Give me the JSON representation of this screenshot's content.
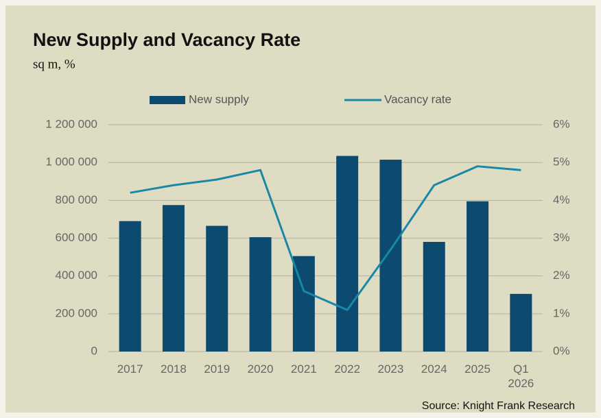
{
  "chart_data": {
    "type": "bar_line",
    "title": "New Supply and Vacancy Rate",
    "subtitle": "sq m, %",
    "source": "Source: Knight Frank Research",
    "categories": [
      "2017",
      "2018",
      "2019",
      "2020",
      "2021",
      "2022",
      "2023",
      "2024",
      "2025",
      "Q1 2026"
    ],
    "series": [
      {
        "name": "New supply",
        "type": "bar",
        "color": "#0d4a70",
        "values": [
          690000,
          775000,
          665000,
          605000,
          505000,
          1035000,
          1015000,
          580000,
          795000,
          305000
        ]
      },
      {
        "name": "Vacancy rate",
        "type": "line",
        "axis": "y2",
        "color": "#1788a6",
        "values": [
          4.2,
          4.4,
          4.55,
          4.8,
          1.6,
          1.1,
          2.7,
          4.4,
          4.9,
          4.8
        ]
      }
    ],
    "ylim": [
      0,
      1200000
    ],
    "yticks": [
      0,
      {
        "value": 200000,
        "label": "200 000"
      },
      {
        "value": 400000,
        "label": "400 000"
      },
      {
        "value": 600000,
        "label": "600 000"
      },
      {
        "value": 800000,
        "label": "800 000"
      },
      {
        "value": 1000000,
        "label": "1 000 000"
      },
      {
        "value": 1200000,
        "label": "1 200 000"
      }
    ],
    "y2lim": [
      0,
      6
    ],
    "y2ticks": [
      {
        "value": 0,
        "label": "0%"
      },
      {
        "value": 1,
        "label": "1%"
      },
      {
        "value": 2,
        "label": "2%"
      },
      {
        "value": 3,
        "label": "3%"
      },
      {
        "value": 4,
        "label": "4%"
      },
      {
        "value": 5,
        "label": "5%"
      },
      {
        "value": 6,
        "label": "6%"
      }
    ],
    "grid": true,
    "legend": "top"
  }
}
